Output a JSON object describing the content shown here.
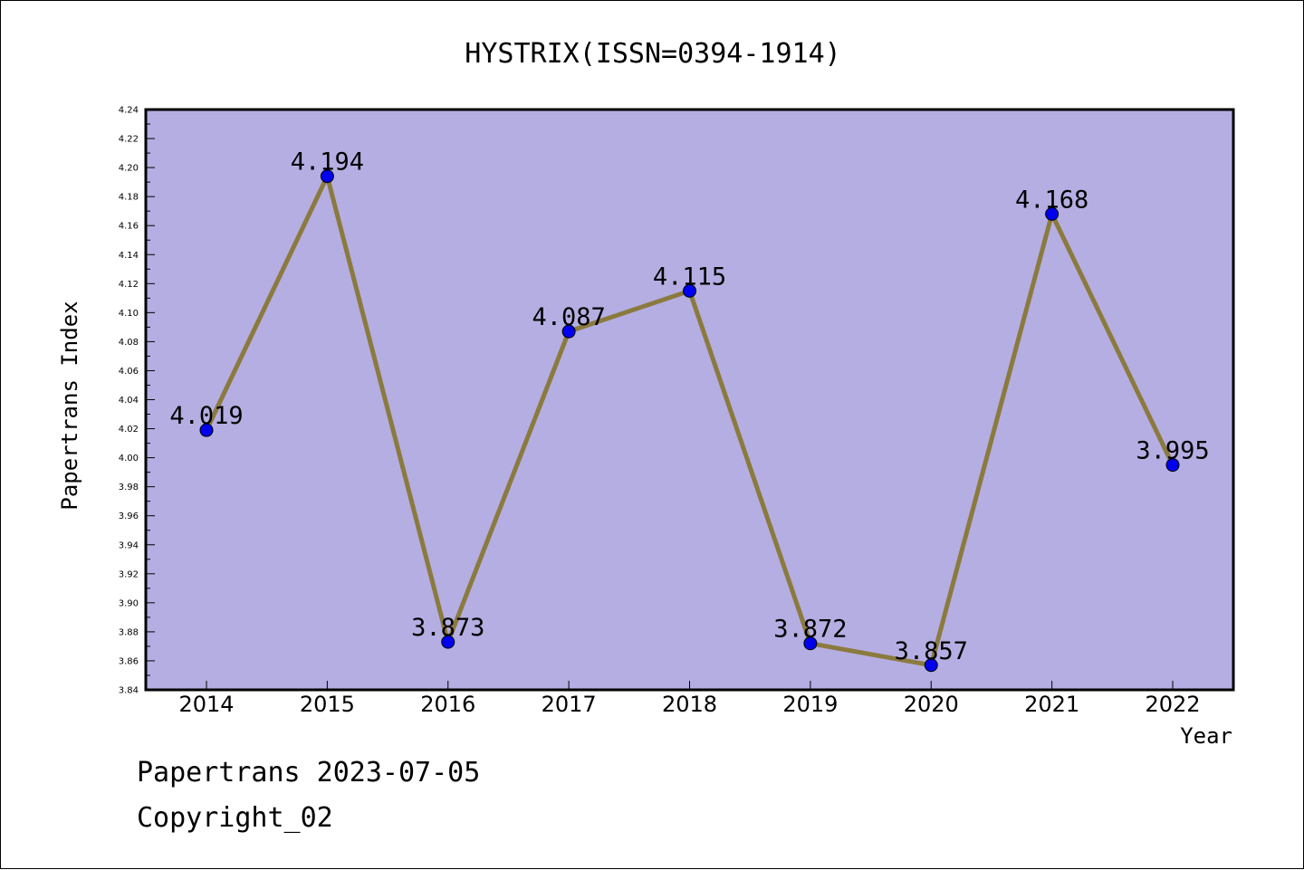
{
  "chart_data": {
    "type": "line",
    "title": "HYSTRIX(ISSN=0394-1914)",
    "xlabel": "Year",
    "ylabel": "Papertrans Index",
    "x": [
      "2014",
      "2015",
      "2016",
      "2017",
      "2018",
      "2019",
      "2020",
      "2021",
      "2022"
    ],
    "series": [
      {
        "values": [
          4.019,
          4.194,
          3.873,
          4.087,
          4.115,
          3.872,
          3.857,
          4.168,
          3.995
        ],
        "labels": [
          "4.019",
          "4.194",
          "3.873",
          "4.087",
          "4.115",
          "3.872",
          "3.857",
          "4.168",
          "3.995"
        ]
      }
    ],
    "yticks": [
      "3.84",
      "3.86",
      "3.88",
      "3.90",
      "3.92",
      "3.94",
      "3.96",
      "3.98",
      "4.00",
      "4.02",
      "4.04",
      "4.06",
      "4.08",
      "4.10",
      "4.12",
      "4.14",
      "4.16",
      "4.18",
      "4.20",
      "4.22",
      "4.24"
    ],
    "ylim": [
      3.84,
      4.24
    ],
    "grid": false,
    "colors": {
      "plot_background": "#b5aee2",
      "line": "#8b7a3e",
      "marker": "#0000ee"
    }
  },
  "footer": {
    "line1": "Papertrans 2023-07-05",
    "line2": "Copyright_02"
  }
}
